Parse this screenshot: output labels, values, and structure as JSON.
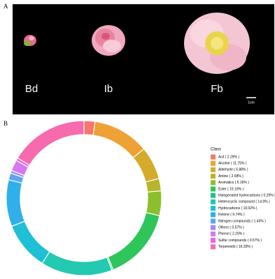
{
  "figure": {
    "panel_a_label": "A",
    "panel_b_label": "B",
    "stage_labels": [
      "Bd",
      "Ib",
      "Fb"
    ],
    "scale_bar": "1cm"
  },
  "chart_data": {
    "type": "donut",
    "legend_title": "Class",
    "categories": [
      "Acit ( 2.29% )",
      "Alcohol ( 11.75% )",
      "Aldehyde ( 6.88% )",
      "Amine ( 2.58% )",
      "Aromatics ( 5.16% )",
      "Ester ( 15.19% )",
      "Halogenated hydrocarbons ( 0.29% )",
      "Heterocyclic compound ( 14.9% )",
      "Hydrocarbons ( 10.02% )",
      "Ketone ( 9.74% )",
      "Nitrogen compounds ( 1.43% )",
      "Others ( 0.57% )",
      "Phenol ( 2.29% )",
      "Sulfur compounds ( 0.57% )",
      "Terpenoids ( 16.33% )"
    ],
    "values": [
      2.29,
      11.75,
      6.88,
      2.58,
      5.16,
      15.19,
      0.29,
      14.9,
      10.02,
      9.74,
      1.43,
      0.57,
      2.29,
      0.57,
      16.33
    ],
    "colors": [
      "#f8766d",
      "#eea236",
      "#d4ab2c",
      "#b9b52a",
      "#8cbf2c",
      "#2ec65a",
      "#22c184",
      "#23c9b0",
      "#1fbfd6",
      "#2fb0ea",
      "#5ea3f5",
      "#9b8cf8",
      "#d778f0",
      "#f263d8",
      "#f76aae"
    ]
  }
}
